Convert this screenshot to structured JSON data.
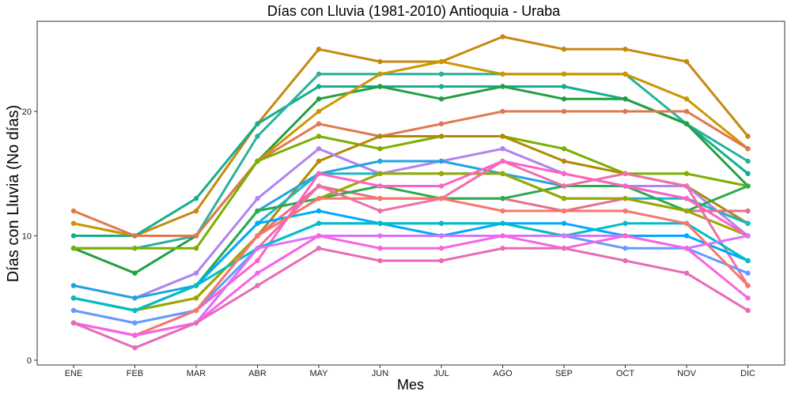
{
  "chart_data": {
    "type": "line",
    "title": "Días con Lluvia (1981-2010)  Antioquia - Uraba",
    "xlabel": "Mes",
    "ylabel": "Días con Lluvia (No días)",
    "categories": [
      "ENE",
      "FEB",
      "MAR",
      "ABR",
      "MAY",
      "JUN",
      "JUL",
      "AGO",
      "SEP",
      "OCT",
      "NOV",
      "DIC"
    ],
    "ylim": [
      0,
      27
    ],
    "yticks": [
      0,
      10,
      20
    ],
    "grid": false,
    "legend": "none",
    "series": [
      {
        "color": "#C5890F",
        "values": [
          11,
          10,
          12,
          19,
          25,
          24,
          24,
          26,
          25,
          25,
          24,
          18
        ]
      },
      {
        "color": "#14AE8E",
        "values": [
          10,
          10,
          13,
          19,
          22,
          22,
          22,
          22,
          22,
          21,
          19,
          15
        ]
      },
      {
        "color": "#2BB09C",
        "values": [
          9,
          9,
          10,
          18,
          23,
          23,
          23,
          23,
          23,
          23,
          19,
          16
        ]
      },
      {
        "color": "#21A040",
        "values": [
          9,
          7,
          10,
          16,
          21,
          22,
          21,
          22,
          21,
          21,
          19,
          14
        ]
      },
      {
        "color": "#CD9600",
        "values": [
          11,
          10,
          10,
          16,
          20,
          23,
          24,
          23,
          23,
          23,
          21,
          17
        ]
      },
      {
        "color": "#E0784F",
        "values": [
          12,
          10,
          10,
          16,
          19,
          18,
          19,
          20,
          20,
          20,
          20,
          17
        ]
      },
      {
        "color": "#7CAE00",
        "values": [
          9,
          9,
          9,
          16,
          18,
          17,
          18,
          18,
          17,
          15,
          15,
          14
        ]
      },
      {
        "color": "#B08A00",
        "values": [
          5,
          4,
          5,
          10,
          16,
          18,
          18,
          18,
          16,
          15,
          14,
          11
        ]
      },
      {
        "color": "#B183F0",
        "values": [
          6,
          5,
          7,
          13,
          17,
          15,
          16,
          17,
          15,
          14,
          14,
          10
        ]
      },
      {
        "color": "#1FA5E0",
        "values": [
          6,
          5,
          6,
          12,
          15,
          16,
          16,
          15,
          14,
          14,
          13,
          11
        ]
      },
      {
        "color": "#23B5C8",
        "values": [
          5,
          4,
          6,
          11,
          15,
          15,
          15,
          15,
          13,
          13,
          13,
          11
        ]
      },
      {
        "color": "#E36F8C",
        "values": [
          4,
          3,
          4,
          10,
          14,
          13,
          13,
          13,
          12,
          13,
          12,
          12
        ]
      },
      {
        "color": "#2AAB4E",
        "values": [
          5,
          4,
          6,
          12,
          13,
          14,
          13,
          13,
          14,
          14,
          12,
          14
        ]
      },
      {
        "color": "#9AA800",
        "values": [
          5,
          4,
          5,
          10,
          13,
          15,
          15,
          15,
          13,
          13,
          12,
          10
        ]
      },
      {
        "color": "#EE6FA8",
        "values": [
          3,
          2,
          3,
          9,
          14,
          12,
          13,
          16,
          14,
          15,
          14,
          6
        ]
      },
      {
        "color": "#FF61C3",
        "values": [
          3,
          2,
          4,
          8,
          15,
          14,
          14,
          16,
          15,
          14,
          13,
          10
        ]
      },
      {
        "color": "#00A9FF",
        "values": [
          5,
          4,
          6,
          11,
          12,
          11,
          10,
          11,
          11,
          10,
          10,
          8
        ]
      },
      {
        "color": "#619CFF",
        "values": [
          4,
          3,
          4,
          9,
          11,
          11,
          11,
          11,
          10,
          9,
          9,
          7
        ]
      },
      {
        "color": "#00BFC4",
        "values": [
          5,
          4,
          6,
          9,
          11,
          11,
          11,
          11,
          10,
          11,
          11,
          8
        ]
      },
      {
        "color": "#F8766D",
        "values": [
          3,
          2,
          4,
          10,
          13,
          13,
          13,
          12,
          12,
          12,
          11,
          6
        ]
      },
      {
        "color": "#DB72FB",
        "values": [
          3,
          2,
          3,
          9,
          10,
          10,
          10,
          10,
          10,
          10,
          9,
          10
        ]
      },
      {
        "color": "#F564E3",
        "values": [
          3,
          2,
          3,
          7,
          10,
          9,
          9,
          10,
          9,
          10,
          9,
          5
        ]
      },
      {
        "color": "#E76BB6",
        "values": [
          3,
          1,
          3,
          6,
          9,
          8,
          8,
          9,
          9,
          8,
          7,
          4
        ]
      }
    ]
  }
}
